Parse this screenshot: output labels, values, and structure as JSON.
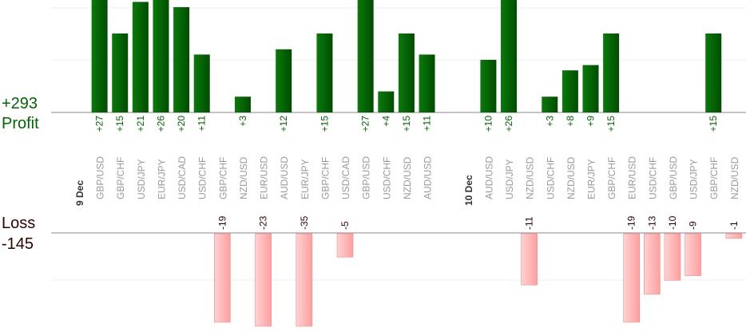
{
  "summary": {
    "profit_total": "+293",
    "profit_label": "Profit",
    "loss_label": "Loss",
    "loss_total": "-145"
  },
  "colors": {
    "profit_text": "#006600",
    "loss_text": "#330000",
    "profit_bar_dark": "#004d00",
    "profit_bar_light": "#0a7a0a",
    "loss_bar_dark": "#ff9e9e",
    "loss_bar_light": "#ffd2d2",
    "pair_label": "#999999",
    "date_label": "#333333"
  },
  "chart_data": {
    "type": "bar",
    "groups": [
      {
        "date": "9 Dec",
        "categories": [
          "GBP/USD",
          "GBP/CHF",
          "USD/JPY",
          "EUR/JPY",
          "USD/CAD",
          "USD/CHF",
          "GBP/CHF",
          "NZD/USD",
          "EUR/USD",
          "AUD/USD",
          "EUR/JPY",
          "GBP/CHF",
          "USD/CAD",
          "GBP/USD",
          "USD/CHF",
          "NZD/USD",
          "AUD/USD"
        ],
        "values": [
          27,
          15,
          21,
          26,
          20,
          11,
          -19,
          3,
          -23,
          12,
          -35,
          15,
          -5,
          27,
          4,
          15,
          11
        ]
      },
      {
        "date": "10 Dec",
        "categories": [
          "AUD/USD",
          "USD/JPY",
          "NZD/USD",
          "USD/CHF",
          "NZD/USD",
          "EUR/JPY",
          "GBP/CHF",
          "EUR/USD",
          "USD/CHF",
          "GBP/USD",
          "USD/JPY",
          "GBP/CHF",
          "NZD/USD"
        ],
        "values": [
          10,
          26,
          -11,
          3,
          8,
          9,
          15,
          -19,
          -13,
          -10,
          -9,
          15,
          -1
        ]
      }
    ],
    "grid": true
  }
}
